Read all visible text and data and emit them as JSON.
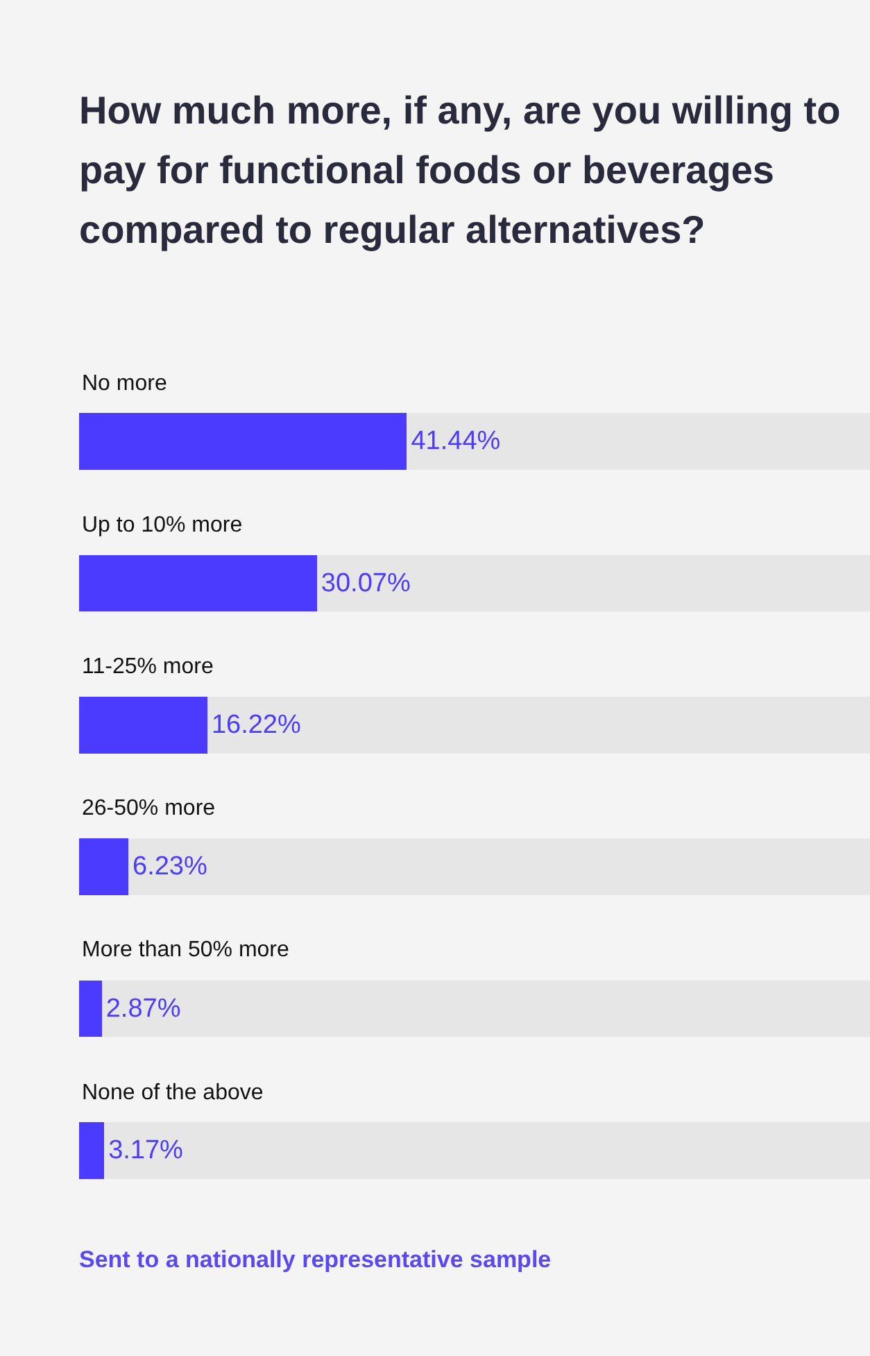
{
  "chart_data": {
    "type": "bar",
    "orientation": "horizontal",
    "title": "How much more, if any, are you willing to pay for functional foods or beverages compared to regular alternatives?",
    "categories": [
      "No more",
      "Up to 10% more",
      "11-25% more",
      "26-50% more",
      "More than 50% more",
      "None of the above"
    ],
    "values": [
      41.44,
      30.07,
      16.22,
      6.23,
      2.87,
      3.17
    ],
    "value_labels": [
      "41.44%",
      "30.07%",
      "16.22%",
      "6.23%",
      "2.87%",
      "3.17%"
    ],
    "color": "#4b3bff",
    "xlim": [
      0,
      100
    ],
    "grid": false,
    "legend": false,
    "tick_labels": "y",
    "annotations": [
      "Sent to a nationally representative sample"
    ]
  }
}
